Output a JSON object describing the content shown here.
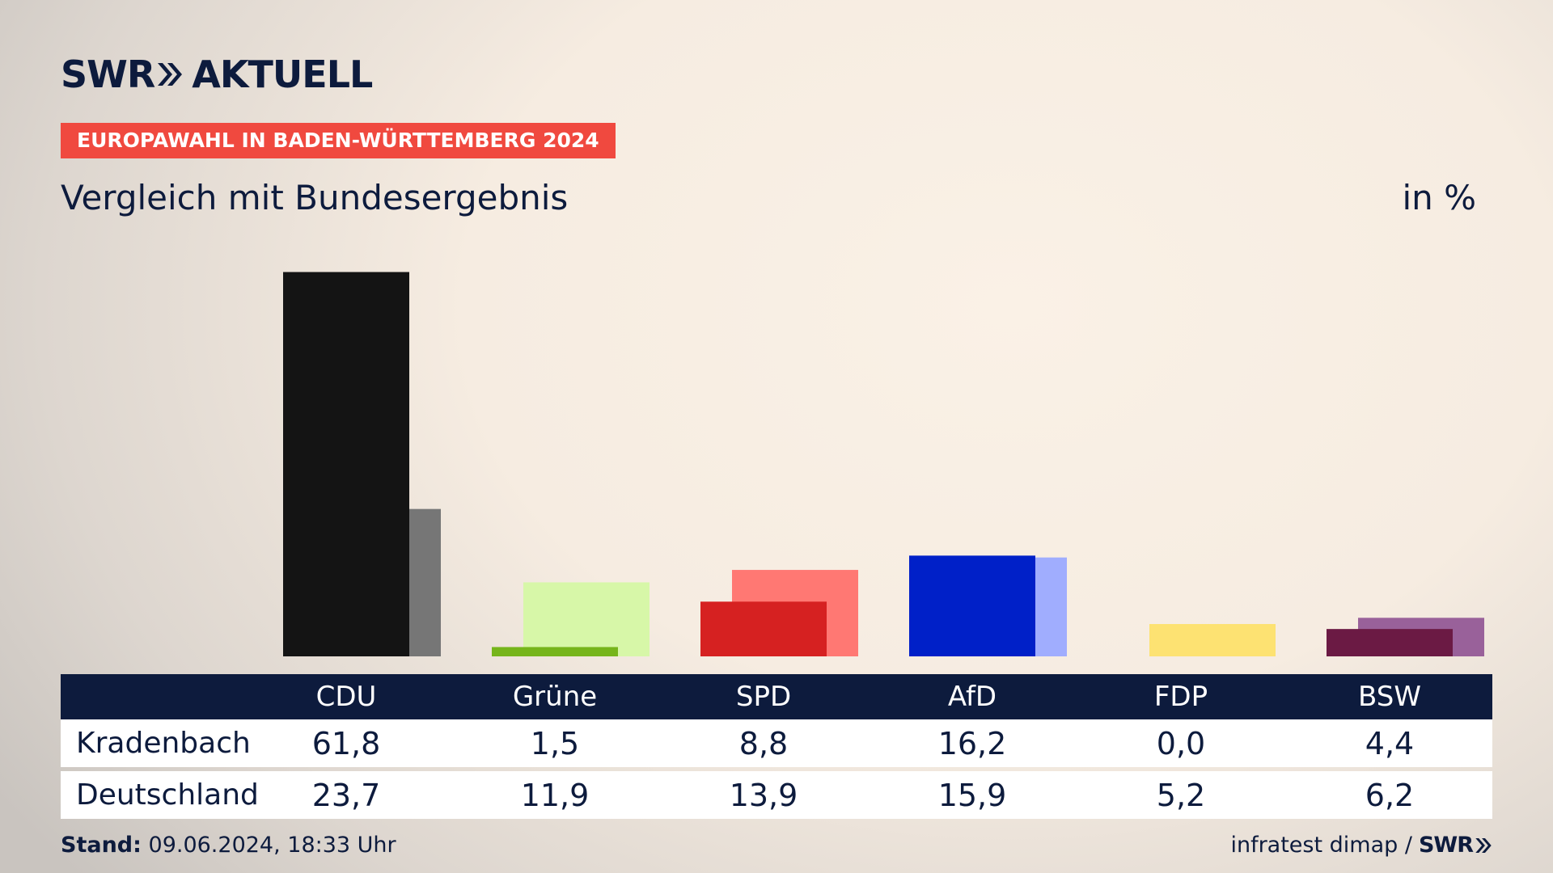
{
  "header": {
    "logo_text": "SWR",
    "logo_suffix": "AKTUELL",
    "tagline": "EUROPAWAHL IN BADEN-WÜRTTEMBERG 2024",
    "title": "Vergleich mit Bundesergebnis",
    "unit": "in %"
  },
  "chart_data": {
    "type": "bar",
    "categories": [
      "CDU",
      "Grüne",
      "SPD",
      "AfD",
      "FDP",
      "BSW"
    ],
    "series": [
      {
        "name": "Kradenbach",
        "values": [
          61.8,
          1.5,
          8.8,
          16.2,
          0.0,
          4.4
        ],
        "display": [
          "61,8",
          "1,5",
          "8,8",
          "16,2",
          "0,0",
          "4,4"
        ]
      },
      {
        "name": "Deutschland",
        "values": [
          23.7,
          11.9,
          13.9,
          15.9,
          5.2,
          6.2
        ],
        "display": [
          "23,7",
          "11,9",
          "13,9",
          "15,9",
          "5,2",
          "6,2"
        ]
      }
    ],
    "colors": {
      "Kradenbach": [
        "#141414",
        "#76b51b",
        "#d62121",
        "#0020c8",
        "#f5d000",
        "#6b1a44"
      ],
      "Deutschland": [
        "#767676",
        "#d7f7a8",
        "#ff7873",
        "#a0adfe",
        "#fde272",
        "#99619a"
      ]
    },
    "ylim": [
      0,
      62
    ]
  },
  "footer": {
    "stand_label": "Stand:",
    "stand_value": "09.06.2024, 18:33 Uhr",
    "source": "infratest dimap /",
    "source_logo": "SWR"
  }
}
